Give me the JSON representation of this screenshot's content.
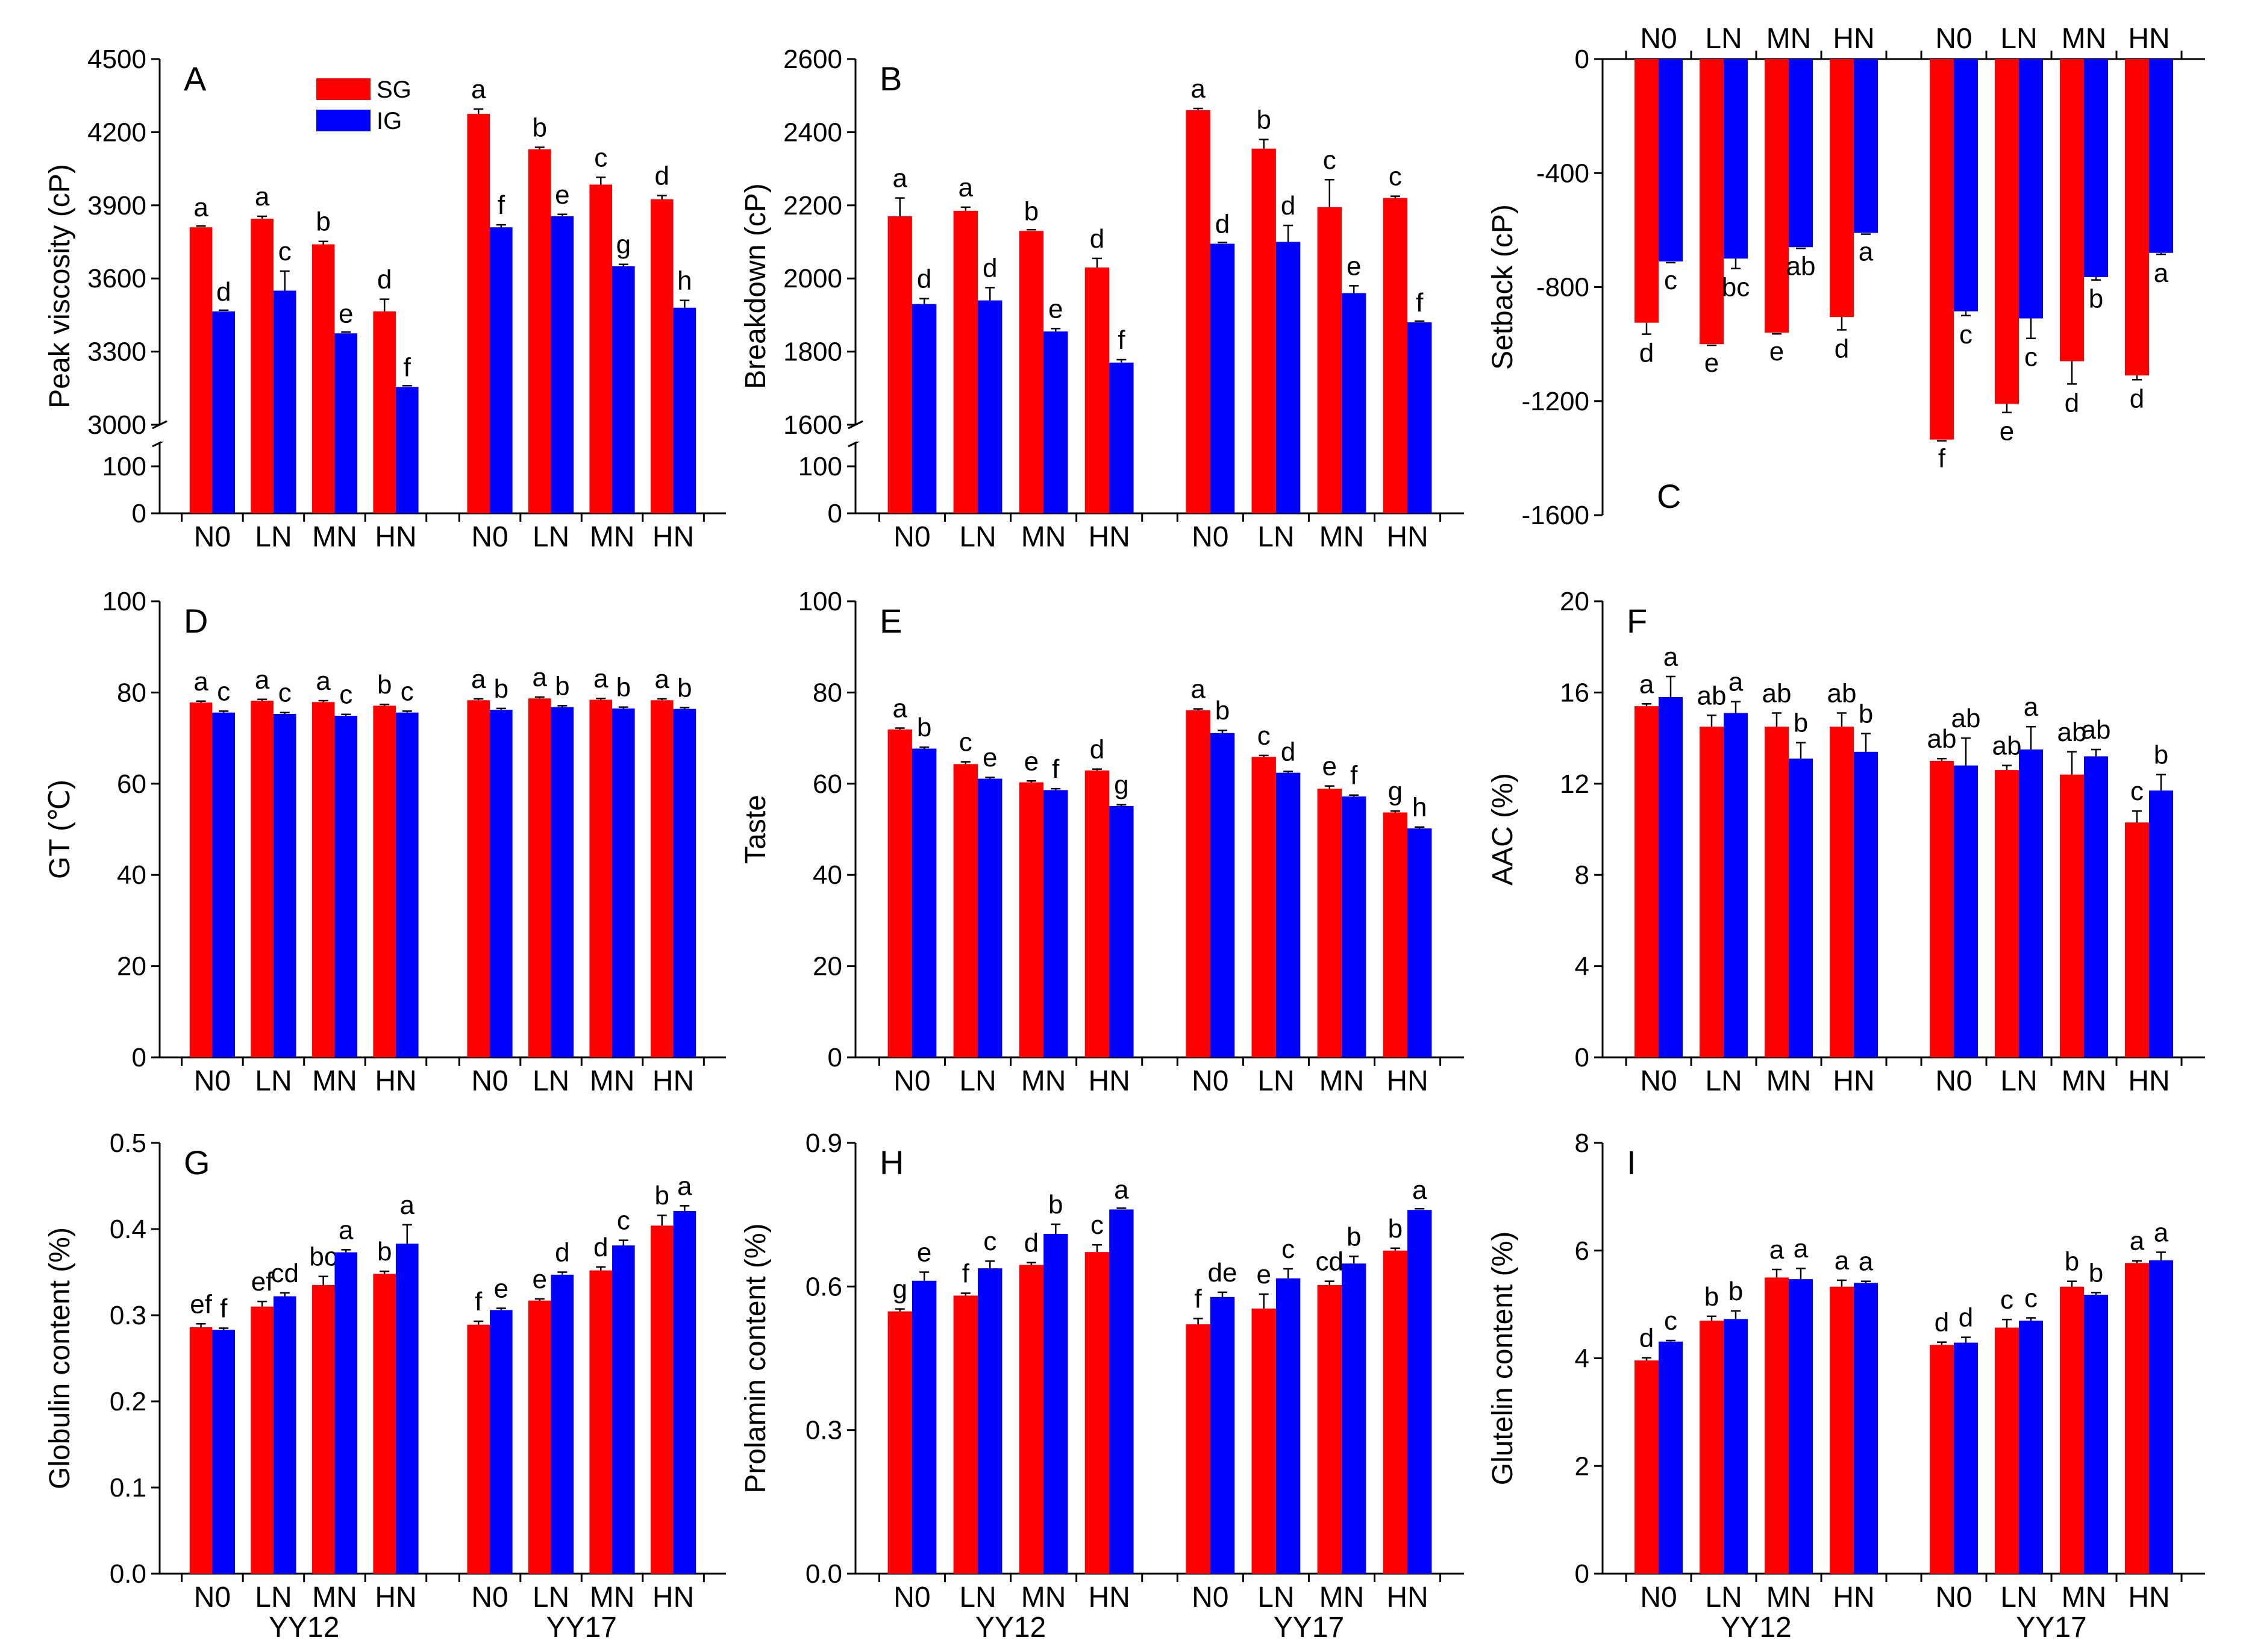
{
  "figure": {
    "legend": [
      {
        "label": "SG",
        "color": "#ff0000"
      },
      {
        "label": "IG",
        "color": "#0000ff"
      }
    ],
    "groups": [
      "YY12",
      "YY17"
    ],
    "categories": [
      "N0",
      "LN",
      "MN",
      "HN"
    ]
  },
  "chart_data": [
    {
      "id": "A",
      "type": "bar",
      "title": "A",
      "ylabel": "Peak viscosity (cP)",
      "broken_axis": true,
      "ylim_upper": [
        3000,
        4500
      ],
      "yticks_upper": [
        3000,
        3300,
        3600,
        3900,
        4200,
        4500
      ],
      "ylim_lower": [
        0,
        150
      ],
      "yticks_lower": [
        0,
        100
      ],
      "groups": [
        "YY12",
        "YY17"
      ],
      "categories": [
        "N0",
        "LN",
        "MN",
        "HN"
      ],
      "show_group_labels": false,
      "cat_position": "bottom",
      "series": [
        {
          "name": "SG",
          "values": [
            [
              3810,
              3845,
              3740,
              3465
            ],
            [
              4275,
              4130,
              3985,
              3925
            ]
          ],
          "err": [
            [
              0,
              10,
              12,
              50
            ],
            [
              20,
              8,
              30,
              15
            ]
          ],
          "letters": [
            [
              "a",
              "a",
              "b",
              "d"
            ],
            [
              "a",
              "b",
              "c",
              "d"
            ]
          ]
        },
        {
          "name": "IG",
          "values": [
            [
              3465,
              3550,
              3375,
              3155
            ],
            [
              3810,
              3855,
              3650,
              3480
            ]
          ],
          "err": [
            [
              0,
              80,
              0,
              0
            ],
            [
              10,
              8,
              8,
              30
            ]
          ],
          "letters": [
            [
              "d",
              "c",
              "e",
              "f"
            ],
            [
              "f",
              "e",
              "g",
              "h"
            ]
          ]
        }
      ]
    },
    {
      "id": "B",
      "type": "bar",
      "title": "B",
      "ylabel": "Breakdown (cP)",
      "broken_axis": true,
      "ylim_upper": [
        1600,
        2600
      ],
      "yticks_upper": [
        1600,
        1800,
        2000,
        2200,
        2400,
        2600
      ],
      "ylim_lower": [
        0,
        150
      ],
      "yticks_lower": [
        0,
        100
      ],
      "groups": [
        "YY12",
        "YY17"
      ],
      "categories": [
        "N0",
        "LN",
        "MN",
        "HN"
      ],
      "show_group_labels": false,
      "cat_position": "bottom",
      "series": [
        {
          "name": "SG",
          "values": [
            [
              2170,
              2185,
              2130,
              2030
            ],
            [
              2460,
              2355,
              2195,
              2220
            ]
          ],
          "err": [
            [
              50,
              10,
              0,
              25
            ],
            [
              5,
              25,
              75,
              5
            ]
          ],
          "letters": [
            [
              "a",
              "a",
              "b",
              "d"
            ],
            [
              "a",
              "b",
              "c",
              "c"
            ]
          ]
        },
        {
          "name": "IG",
          "values": [
            [
              1930,
              1940,
              1855,
              1770
            ],
            [
              2095,
              2100,
              1960,
              1880
            ]
          ],
          "err": [
            [
              15,
              35,
              8,
              8
            ],
            [
              0,
              45,
              20,
              0
            ]
          ],
          "letters": [
            [
              "d",
              "d",
              "e",
              "f"
            ],
            [
              "d",
              "d",
              "e",
              "f"
            ]
          ]
        }
      ]
    },
    {
      "id": "C",
      "type": "bar",
      "title": "C",
      "ylabel": "Setback (cP)",
      "ylim": [
        -1600,
        0
      ],
      "yticks": [
        -1600,
        -1200,
        -800,
        -400,
        0
      ],
      "groups": [
        "YY12",
        "YY17"
      ],
      "categories": [
        "N0",
        "LN",
        "MN",
        "HN"
      ],
      "show_group_labels": false,
      "cat_position": "top",
      "series": [
        {
          "name": "SG",
          "values": [
            [
              -925,
              -1000,
              -960,
              -905
            ],
            [
              -1335,
              -1210,
              -1060,
              -1110
            ]
          ],
          "err": [
            [
              40,
              0,
              0,
              45
            ],
            [
              0,
              30,
              80,
              15
            ]
          ],
          "letters": [
            [
              "d",
              "e",
              "e",
              "d"
            ],
            [
              "f",
              "e",
              "d",
              "d"
            ]
          ]
        },
        {
          "name": "IG",
          "values": [
            [
              -710,
              -700,
              -660,
              -610
            ],
            [
              -885,
              -910,
              -765,
              -680
            ]
          ],
          "err": [
            [
              0,
              35,
              0,
              0
            ],
            [
              15,
              70,
              10,
              5
            ]
          ],
          "letters": [
            [
              "c",
              "bc",
              "ab",
              "a"
            ],
            [
              "c",
              "c",
              "b",
              "a"
            ]
          ]
        }
      ]
    },
    {
      "id": "D",
      "type": "bar",
      "title": "D",
      "ylabel": "GT (℃)",
      "ylim": [
        0,
        100
      ],
      "yticks": [
        0,
        20,
        40,
        60,
        80,
        100
      ],
      "groups": [
        "YY12",
        "YY17"
      ],
      "categories": [
        "N0",
        "LN",
        "MN",
        "HN"
      ],
      "show_group_labels": false,
      "cat_position": "bottom",
      "series": [
        {
          "name": "SG",
          "values": [
            [
              77.8,
              78.2,
              77.9,
              77.1
            ],
            [
              78.3,
              78.7,
              78.4,
              78.3
            ]
          ],
          "err": [
            [
              0.3,
              0.3,
              0.3,
              0.3
            ],
            [
              0.3,
              0.3,
              0.3,
              0.3
            ]
          ],
          "letters": [
            [
              "a",
              "a",
              "a",
              "b"
            ],
            [
              "a",
              "a",
              "a",
              "a"
            ]
          ]
        },
        {
          "name": "IG",
          "values": [
            [
              75.6,
              75.3,
              74.9,
              75.6
            ],
            [
              76.2,
              76.8,
              76.5,
              76.4
            ]
          ],
          "err": [
            [
              0.3,
              0.3,
              0.3,
              0.3
            ],
            [
              0.3,
              0.3,
              0.3,
              0.3
            ]
          ],
          "letters": [
            [
              "c",
              "c",
              "c",
              "c"
            ],
            [
              "b",
              "b",
              "b",
              "b"
            ]
          ]
        }
      ]
    },
    {
      "id": "E",
      "type": "bar",
      "title": "E",
      "ylabel": "Taste",
      "ylim": [
        0,
        100
      ],
      "yticks": [
        0,
        20,
        40,
        60,
        80,
        100
      ],
      "groups": [
        "YY12",
        "YY17"
      ],
      "categories": [
        "N0",
        "LN",
        "MN",
        "HN"
      ],
      "show_group_labels": false,
      "cat_position": "bottom",
      "series": [
        {
          "name": "SG",
          "values": [
            [
              71.9,
              64.3,
              60.3,
              62.9
            ],
            [
              76.1,
              65.9,
              58.9,
              53.7
            ]
          ],
          "err": [
            [
              0.3,
              0.5,
              0.3,
              0.3
            ],
            [
              0.3,
              0.3,
              0.6,
              0.3
            ]
          ],
          "letters": [
            [
              "a",
              "c",
              "e",
              "d"
            ],
            [
              "a",
              "c",
              "e",
              "g"
            ]
          ]
        },
        {
          "name": "IG",
          "values": [
            [
              67.7,
              61.1,
              58.6,
              55.1
            ],
            [
              71.1,
              62.4,
              57.2,
              50.2
            ]
          ],
          "err": [
            [
              0.3,
              0.3,
              0.3,
              0.3
            ],
            [
              0.6,
              0.3,
              0.3,
              0.3
            ]
          ],
          "letters": [
            [
              "b",
              "e",
              "f",
              "g"
            ],
            [
              "b",
              "d",
              "f",
              "h"
            ]
          ]
        }
      ]
    },
    {
      "id": "F",
      "type": "bar",
      "title": "F",
      "ylabel": "AAC (%)",
      "ylim": [
        0,
        20
      ],
      "yticks": [
        0,
        4,
        8,
        12,
        16,
        20
      ],
      "groups": [
        "YY12",
        "YY17"
      ],
      "categories": [
        "N0",
        "LN",
        "MN",
        "HN"
      ],
      "show_group_labels": false,
      "cat_position": "bottom",
      "series": [
        {
          "name": "SG",
          "values": [
            [
              15.4,
              14.5,
              14.5,
              14.5
            ],
            [
              13.0,
              12.6,
              12.4,
              10.3
            ]
          ],
          "err": [
            [
              0.1,
              0.5,
              0.6,
              0.6
            ],
            [
              0.1,
              0.2,
              1.0,
              0.5
            ]
          ],
          "letters": [
            [
              "a",
              "ab",
              "ab",
              "ab"
            ],
            [
              "ab",
              "ab",
              "ab",
              "c"
            ]
          ]
        },
        {
          "name": "IG",
          "values": [
            [
              15.8,
              15.1,
              13.1,
              13.4
            ],
            [
              12.8,
              13.5,
              13.2,
              11.7
            ]
          ],
          "err": [
            [
              0.9,
              0.5,
              0.7,
              0.8
            ],
            [
              1.2,
              1.0,
              0.3,
              0.7
            ]
          ],
          "letters": [
            [
              "a",
              "a",
              "b",
              "b"
            ],
            [
              "ab",
              "a",
              "ab",
              "b"
            ]
          ]
        }
      ]
    },
    {
      "id": "G",
      "type": "bar",
      "title": "G",
      "ylabel": "Globulin content (%)",
      "ylim": [
        0,
        0.5
      ],
      "yticks": [
        0.0,
        0.1,
        0.2,
        0.3,
        0.4,
        0.5
      ],
      "tick_decimals": 1,
      "groups": [
        "YY12",
        "YY17"
      ],
      "categories": [
        "N0",
        "LN",
        "MN",
        "HN"
      ],
      "show_group_labels": true,
      "cat_position": "bottom",
      "series": [
        {
          "name": "SG",
          "values": [
            [
              0.286,
              0.31,
              0.335,
              0.348
            ],
            [
              0.289,
              0.317,
              0.352,
              0.404
            ]
          ],
          "err": [
            [
              0.004,
              0.006,
              0.01,
              0.003
            ],
            [
              0.004,
              0.002,
              0.004,
              0.012
            ]
          ],
          "letters": [
            [
              "ef",
              "ef",
              "bc",
              "b"
            ],
            [
              "f",
              "e",
              "d",
              "b"
            ]
          ]
        },
        {
          "name": "IG",
          "values": [
            [
              0.283,
              0.322,
              0.373,
              0.383
            ],
            [
              0.306,
              0.347,
              0.381,
              0.421
            ]
          ],
          "err": [
            [
              0.002,
              0.004,
              0.003,
              0.022
            ],
            [
              0.002,
              0.003,
              0.006,
              0.006
            ]
          ],
          "letters": [
            [
              "f",
              "cd",
              "a",
              "a"
            ],
            [
              "e",
              "d",
              "c",
              "a"
            ]
          ]
        }
      ]
    },
    {
      "id": "H",
      "type": "bar",
      "title": "H",
      "ylabel": "Prolamin content (%)",
      "ylim": [
        0,
        0.9
      ],
      "yticks": [
        0.0,
        0.3,
        0.6,
        0.9
      ],
      "tick_decimals": 1,
      "groups": [
        "YY12",
        "YY17"
      ],
      "categories": [
        "N0",
        "LN",
        "MN",
        "HN"
      ],
      "show_group_labels": true,
      "cat_position": "bottom",
      "series": [
        {
          "name": "SG",
          "values": [
            [
              0.548,
              0.581,
              0.645,
              0.672
            ],
            [
              0.521,
              0.554,
              0.603,
              0.675
            ]
          ],
          "err": [
            [
              0.005,
              0.005,
              0.005,
              0.015
            ],
            [
              0.012,
              0.03,
              0.008,
              0.005
            ]
          ],
          "letters": [
            [
              "g",
              "f",
              "d",
              "c"
            ],
            [
              "f",
              "e",
              "cd",
              "b"
            ]
          ]
        },
        {
          "name": "IG",
          "values": [
            [
              0.612,
              0.638,
              0.71,
              0.761
            ],
            [
              0.578,
              0.617,
              0.648,
              0.76
            ]
          ],
          "err": [
            [
              0.018,
              0.015,
              0.02,
              0.0
            ],
            [
              0.01,
              0.02,
              0.015,
              0.0
            ]
          ],
          "letters": [
            [
              "e",
              "c",
              "b",
              "a"
            ],
            [
              "de",
              "c",
              "b",
              "a"
            ]
          ]
        }
      ]
    },
    {
      "id": "I",
      "type": "bar",
      "title": "I",
      "ylabel": "Glutelin content (%)",
      "ylim": [
        0,
        8
      ],
      "yticks": [
        0,
        2,
        4,
        6,
        8
      ],
      "groups": [
        "YY12",
        "YY17"
      ],
      "categories": [
        "N0",
        "LN",
        "MN",
        "HN"
      ],
      "show_group_labels": true,
      "cat_position": "bottom",
      "series": [
        {
          "name": "SG",
          "values": [
            [
              3.96,
              4.7,
              5.5,
              5.33
            ],
            [
              4.25,
              4.57,
              5.33,
              5.77
            ]
          ],
          "err": [
            [
              0.05,
              0.08,
              0.15,
              0.12
            ],
            [
              0.05,
              0.15,
              0.1,
              0.04
            ]
          ],
          "letters": [
            [
              "d",
              "b",
              "a",
              "a"
            ],
            [
              "d",
              "c",
              "b",
              "a"
            ]
          ]
        },
        {
          "name": "IG",
          "values": [
            [
              4.31,
              4.73,
              5.47,
              5.4
            ],
            [
              4.29,
              4.7,
              5.18,
              5.82
            ]
          ],
          "err": [
            [
              0.02,
              0.15,
              0.2,
              0.03
            ],
            [
              0.1,
              0.05,
              0.04,
              0.15
            ]
          ],
          "letters": [
            [
              "c",
              "b",
              "a",
              "a"
            ],
            [
              "d",
              "c",
              "b",
              "a"
            ]
          ]
        }
      ]
    }
  ]
}
